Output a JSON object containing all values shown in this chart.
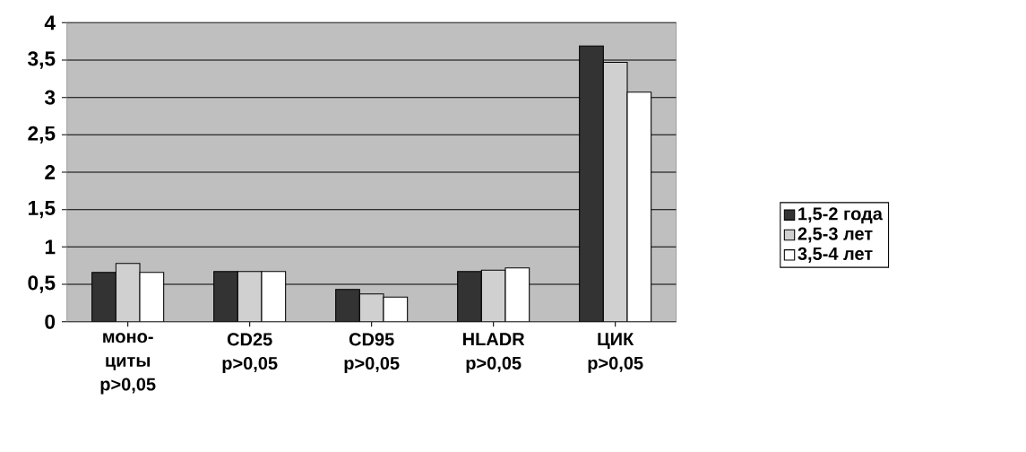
{
  "chart_data": {
    "type": "bar",
    "categories": [
      "моно-циты p>0,05",
      "CD25 p>0,05",
      "CD95 p>0,05",
      "HLADR p>0,05",
      "ЦИК p>0,05"
    ],
    "series": [
      {
        "name": "1,5-2 года",
        "color": "#333333",
        "values": [
          0.66,
          0.67,
          0.43,
          0.67,
          3.69
        ]
      },
      {
        "name": "2,5-3 лет",
        "color": "#d0d0d0",
        "values": [
          0.78,
          0.67,
          0.37,
          0.69,
          3.47
        ]
      },
      {
        "name": "3,5-4 лет",
        "color": "#ffffff",
        "values": [
          0.66,
          0.67,
          0.33,
          0.72,
          3.07
        ]
      }
    ],
    "ylim": [
      0,
      4
    ],
    "yticks": [
      0,
      {
        "value": 0.5,
        "label": "0,5"
      },
      1,
      {
        "value": 1.5,
        "label": "1,5"
      },
      2,
      {
        "value": 2.5,
        "label": "2,5"
      },
      3,
      {
        "value": 3.5,
        "label": "3,5"
      },
      4
    ],
    "grid": "y",
    "legend": "right"
  }
}
